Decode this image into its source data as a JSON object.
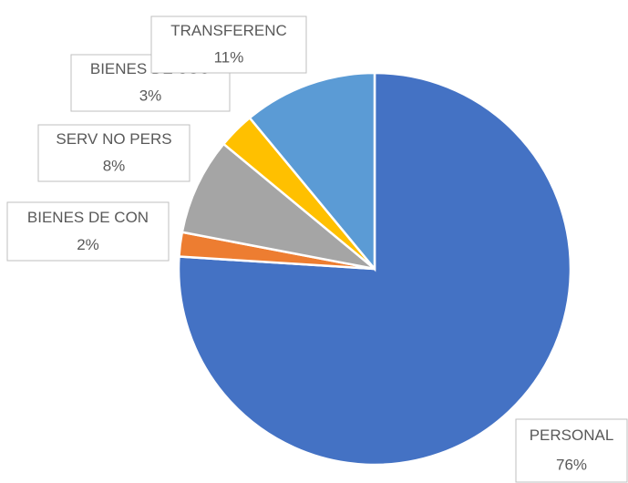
{
  "chart_data": {
    "type": "pie",
    "categories": [
      "PERSONAL",
      "BIENES DE CON",
      "SERV NO PERS",
      "BIENES DE USO",
      "TRANSFERENC"
    ],
    "values": [
      76,
      2,
      8,
      3,
      11
    ],
    "value_labels": [
      "76%",
      "2%",
      "8%",
      "3%",
      "11%"
    ],
    "colors": [
      "#4472c4",
      "#ed7d31",
      "#a5a5a5",
      "#ffc000",
      "#5b9bd5"
    ]
  }
}
